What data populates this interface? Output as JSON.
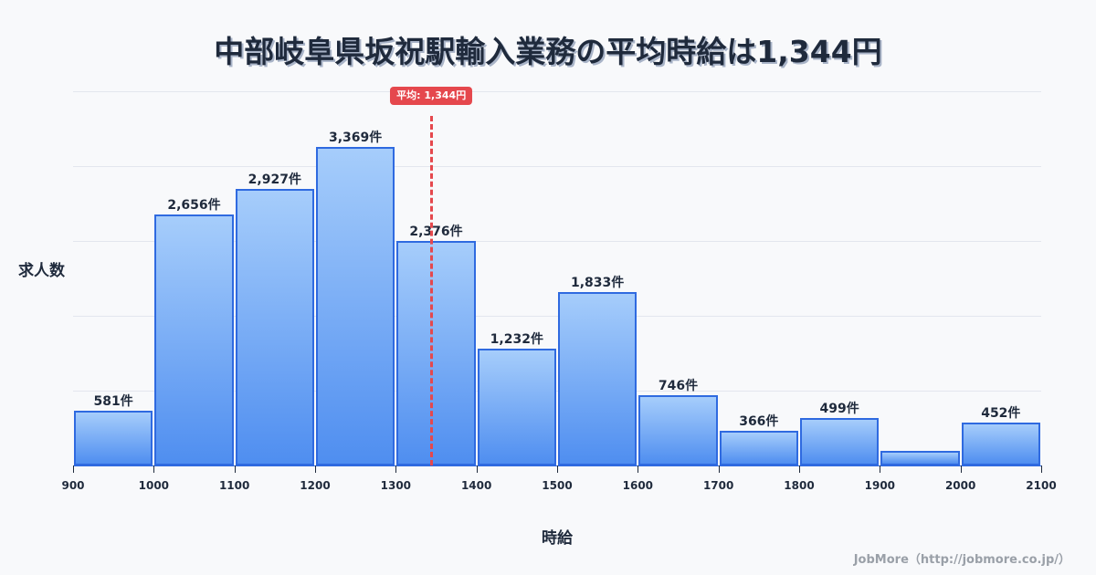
{
  "header": {
    "title": "中部岐阜県坂祝駅輸入業務の平均時給は1,344円"
  },
  "axes": {
    "ylabel": "求人数",
    "xlabel": "時給"
  },
  "average": {
    "label": "平均: 1,344円",
    "value": 1344,
    "color": "#e5484d"
  },
  "credit": "JobMore（http://jobmore.co.jp/）",
  "colors": {
    "bar_fill_top": "#a6cdfb",
    "bar_fill_bottom": "#4f8ef0",
    "bar_border": "#2f6ae0",
    "grid": "#e3e6ee",
    "background": "#f8f9fb"
  },
  "chart_data": {
    "type": "bar",
    "title": "中部岐阜県坂祝駅輸入業務の平均時給は1,344円",
    "xlabel": "時給",
    "ylabel": "求人数",
    "bins": [
      {
        "from": 900,
        "to": 1000,
        "value": 581,
        "label": "581件"
      },
      {
        "from": 1000,
        "to": 1100,
        "value": 2656,
        "label": "2,656件"
      },
      {
        "from": 1100,
        "to": 1200,
        "value": 2927,
        "label": "2,927件"
      },
      {
        "from": 1200,
        "to": 1300,
        "value": 3369,
        "label": "3,369件"
      },
      {
        "from": 1300,
        "to": 1400,
        "value": 2376,
        "label": "2,376件"
      },
      {
        "from": 1400,
        "to": 1500,
        "value": 1232,
        "label": "1,232件"
      },
      {
        "from": 1500,
        "to": 1600,
        "value": 1833,
        "label": "1,833件"
      },
      {
        "from": 1600,
        "to": 1700,
        "value": 746,
        "label": "746件"
      },
      {
        "from": 1700,
        "to": 1800,
        "value": 366,
        "label": "366件"
      },
      {
        "from": 1800,
        "to": 1900,
        "value": 499,
        "label": "499件"
      },
      {
        "from": 1900,
        "to": 2000,
        "value": 155,
        "label": ""
      },
      {
        "from": 2000,
        "to": 2100,
        "value": 452,
        "label": "452件"
      }
    ],
    "categories": [
      "900-1000",
      "1000-1100",
      "1100-1200",
      "1200-1300",
      "1300-1400",
      "1400-1500",
      "1500-1600",
      "1600-1700",
      "1700-1800",
      "1800-1900",
      "1900-2000",
      "2000-2100"
    ],
    "values": [
      581,
      2656,
      2927,
      3369,
      2376,
      1232,
      1833,
      746,
      366,
      499,
      155,
      452
    ],
    "x_ticks": [
      "900",
      "1000",
      "1100",
      "1200",
      "1300",
      "1400",
      "1500",
      "1600",
      "1700",
      "1800",
      "1900",
      "2000",
      "2100"
    ],
    "xlim": [
      900,
      2100
    ],
    "ylim": [
      0,
      3960
    ],
    "grid": true,
    "gridlines_y": [
      792,
      1584,
      2376,
      3168,
      3960
    ],
    "annotations": [
      {
        "type": "vline",
        "x": 1344,
        "label": "平均: 1,344円",
        "style": "dashed",
        "color": "#e5484d"
      }
    ],
    "legend": null
  }
}
